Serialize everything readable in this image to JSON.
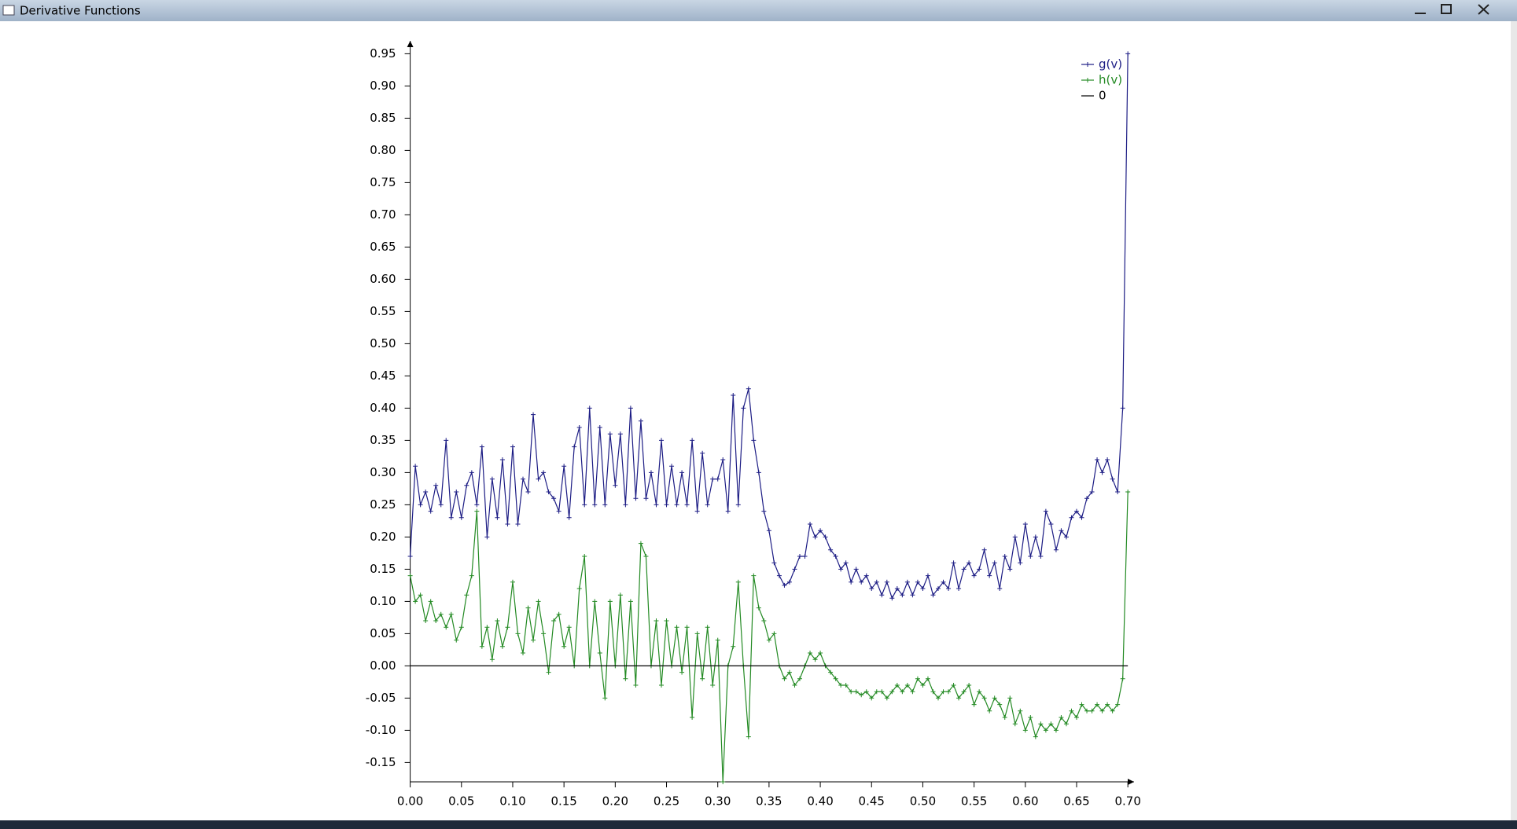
{
  "window": {
    "title": "Derivative Functions"
  },
  "chart_data": {
    "type": "line",
    "legend": "top-right",
    "xlim": [
      0,
      0.706
    ],
    "ylim": [
      -0.18,
      0.97
    ],
    "xticks": [
      {
        "value": 0,
        "label": "0.00"
      },
      0.05,
      {
        "value": 0.1,
        "label": "0.10"
      },
      0.15,
      {
        "value": 0.2,
        "label": "0.20"
      },
      0.25,
      {
        "value": 0.3,
        "label": "0.30"
      },
      0.35,
      {
        "value": 0.4,
        "label": "0.40"
      },
      0.45,
      {
        "value": 0.5,
        "label": "0.50"
      },
      0.55,
      {
        "value": 0.6,
        "label": "0.60"
      },
      0.65,
      {
        "value": 0.7,
        "label": "0.70"
      }
    ],
    "yticks": [
      -0.15,
      {
        "value": -0.1,
        "label": "-0.10"
      },
      -0.05,
      {
        "value": 0,
        "label": "0.00"
      },
      0.05,
      {
        "value": 0.1,
        "label": "0.10"
      },
      0.15,
      {
        "value": 0.2,
        "label": "0.20"
      },
      0.25,
      {
        "value": 0.3,
        "label": "0.30"
      },
      0.35,
      {
        "value": 0.4,
        "label": "0.40"
      },
      0.45,
      {
        "value": 0.5,
        "label": "0.50"
      },
      0.55,
      {
        "value": 0.6,
        "label": "0.60"
      },
      0.65,
      {
        "value": 0.7,
        "label": "0.70"
      },
      0.75,
      {
        "value": 0.8,
        "label": "0.80"
      },
      0.85,
      {
        "value": 0.9,
        "label": "0.90"
      },
      0.95
    ],
    "x": [
      0,
      0.005,
      0.01,
      0.015,
      0.02,
      0.025,
      0.03,
      0.035,
      0.04,
      0.045,
      0.05,
      0.055,
      0.06,
      0.065,
      0.07,
      0.075,
      0.08,
      0.085,
      0.09,
      0.095,
      0.1,
      0.105,
      0.11,
      0.115,
      0.12,
      0.125,
      0.13,
      0.135,
      0.14,
      0.145,
      0.15,
      0.155,
      0.16,
      0.165,
      0.17,
      0.175,
      0.18,
      0.185,
      0.19,
      0.195,
      0.2,
      0.205,
      0.21,
      0.215,
      0.22,
      0.225,
      0.23,
      0.235,
      0.24,
      0.245,
      0.25,
      0.255,
      0.26,
      0.265,
      0.27,
      0.275,
      0.28,
      0.285,
      0.29,
      0.295,
      0.3,
      0.305,
      0.31,
      0.315,
      0.32,
      0.325,
      0.33,
      0.335,
      0.34,
      0.345,
      0.35,
      0.355,
      0.36,
      0.365,
      0.37,
      0.375,
      0.38,
      0.385,
      0.39,
      0.395,
      0.4,
      0.405,
      0.41,
      0.415,
      0.42,
      0.425,
      0.43,
      0.435,
      0.44,
      0.445,
      0.45,
      0.455,
      0.46,
      0.465,
      0.47,
      0.475,
      0.48,
      0.485,
      0.49,
      0.495,
      0.5,
      0.505,
      0.51,
      0.515,
      0.52,
      0.525,
      0.53,
      0.535,
      0.54,
      0.545,
      0.55,
      0.555,
      0.56,
      0.565,
      0.57,
      0.575,
      0.58,
      0.585,
      0.59,
      0.595,
      0.6,
      0.605,
      0.61,
      0.615,
      0.62,
      0.625,
      0.63,
      0.635,
      0.64,
      0.645,
      0.65,
      0.655,
      0.66,
      0.665,
      0.67,
      0.675,
      0.68,
      0.685,
      0.69,
      0.695,
      0.7
    ],
    "series": [
      {
        "name": "g(v)",
        "color": "#1c1c84",
        "markers": true,
        "values": [
          0.17,
          0.31,
          0.25,
          0.27,
          0.24,
          0.28,
          0.25,
          0.35,
          0.23,
          0.27,
          0.23,
          0.28,
          0.3,
          0.25,
          0.34,
          0.2,
          0.29,
          0.23,
          0.32,
          0.22,
          0.34,
          0.22,
          0.29,
          0.27,
          0.39,
          0.29,
          0.3,
          0.27,
          0.26,
          0.24,
          0.31,
          0.23,
          0.34,
          0.37,
          0.25,
          0.4,
          0.25,
          0.37,
          0.25,
          0.36,
          0.28,
          0.36,
          0.25,
          0.4,
          0.26,
          0.38,
          0.26,
          0.3,
          0.25,
          0.35,
          0.25,
          0.31,
          0.25,
          0.3,
          0.25,
          0.35,
          0.24,
          0.33,
          0.25,
          0.29,
          0.29,
          0.32,
          0.24,
          0.42,
          0.25,
          0.4,
          0.43,
          0.35,
          0.3,
          0.24,
          0.21,
          0.16,
          0.14,
          0.125,
          0.13,
          0.15,
          0.17,
          0.17,
          0.22,
          0.2,
          0.21,
          0.2,
          0.18,
          0.17,
          0.15,
          0.16,
          0.13,
          0.15,
          0.13,
          0.14,
          0.12,
          0.13,
          0.11,
          0.13,
          0.105,
          0.12,
          0.11,
          0.13,
          0.11,
          0.13,
          0.12,
          0.14,
          0.11,
          0.12,
          0.13,
          0.12,
          0.16,
          0.12,
          0.15,
          0.16,
          0.14,
          0.15,
          0.18,
          0.14,
          0.16,
          0.12,
          0.17,
          0.15,
          0.2,
          0.16,
          0.22,
          0.17,
          0.2,
          0.17,
          0.24,
          0.22,
          0.18,
          0.21,
          0.2,
          0.23,
          0.24,
          0.23,
          0.26,
          0.27,
          0.32,
          0.3,
          0.32,
          0.29,
          0.27,
          0.4,
          0.95
        ]
      },
      {
        "name": "h(v)",
        "color": "#238a23",
        "markers": true,
        "values": [
          0.14,
          0.1,
          0.11,
          0.07,
          0.1,
          0.07,
          0.08,
          0.06,
          0.08,
          0.04,
          0.06,
          0.11,
          0.14,
          0.24,
          0.03,
          0.06,
          0.01,
          0.07,
          0.03,
          0.06,
          0.13,
          0.05,
          0.02,
          0.09,
          0.04,
          0.1,
          0.05,
          -0.01,
          0.07,
          0.08,
          0.03,
          0.06,
          0.0,
          0.12,
          0.17,
          0.0,
          0.1,
          0.02,
          -0.05,
          0.1,
          0.0,
          0.11,
          -0.02,
          0.1,
          -0.03,
          0.19,
          0.17,
          0.0,
          0.07,
          -0.03,
          0.07,
          0.0,
          0.06,
          -0.01,
          0.06,
          -0.08,
          0.05,
          -0.02,
          0.06,
          -0.03,
          0.04,
          -0.18,
          0.0,
          0.03,
          0.13,
          0.0,
          -0.11,
          0.14,
          0.09,
          0.07,
          0.04,
          0.05,
          0.0,
          -0.02,
          -0.01,
          -0.03,
          -0.02,
          0.0,
          0.02,
          0.01,
          0.02,
          0.0,
          -0.01,
          -0.02,
          -0.03,
          -0.03,
          -0.04,
          -0.04,
          -0.045,
          -0.04,
          -0.05,
          -0.04,
          -0.04,
          -0.05,
          -0.04,
          -0.03,
          -0.04,
          -0.03,
          -0.04,
          -0.02,
          -0.03,
          -0.02,
          -0.04,
          -0.05,
          -0.04,
          -0.04,
          -0.03,
          -0.05,
          -0.04,
          -0.03,
          -0.06,
          -0.04,
          -0.05,
          -0.07,
          -0.05,
          -0.06,
          -0.08,
          -0.05,
          -0.09,
          -0.07,
          -0.1,
          -0.08,
          -0.11,
          -0.09,
          -0.1,
          -0.09,
          -0.1,
          -0.08,
          -0.09,
          -0.07,
          -0.08,
          -0.06,
          -0.07,
          -0.07,
          -0.06,
          -0.07,
          -0.06,
          -0.07,
          -0.06,
          -0.02,
          0.27
        ]
      },
      {
        "name": "0",
        "color": "#000000",
        "markers": false,
        "x": [
          0,
          0.7
        ],
        "values": [
          0,
          0
        ]
      }
    ]
  }
}
